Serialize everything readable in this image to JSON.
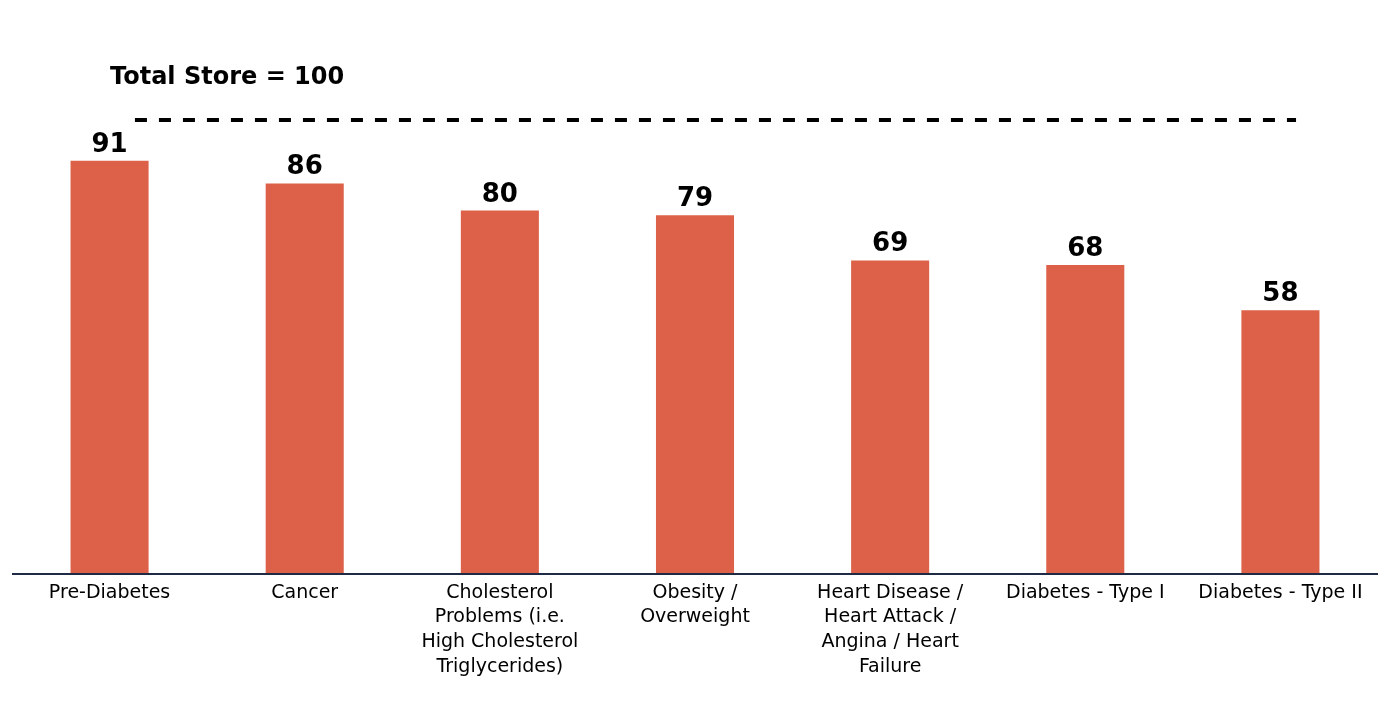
{
  "chart_data": {
    "type": "bar",
    "categories": [
      "Pre-Diabetes",
      "Cancer",
      "Cholesterol Problems (i.e. High Cholesterol Triglycerides)",
      "Obesity / Overweight",
      "Heart Disease / Heart Attack / Angina / Heart Failure",
      "Diabetes - Type I",
      "Diabetes - Type II"
    ],
    "values": [
      91,
      86,
      80,
      79,
      69,
      68,
      58
    ],
    "color": "#dd6149",
    "data_labels": true,
    "tick_labels": "x",
    "grid": false,
    "ref_lines": [
      {
        "axis": "y",
        "value": 100,
        "label": "Total Store = 100",
        "color": "#000000",
        "line_style": "dashed"
      }
    ]
  }
}
